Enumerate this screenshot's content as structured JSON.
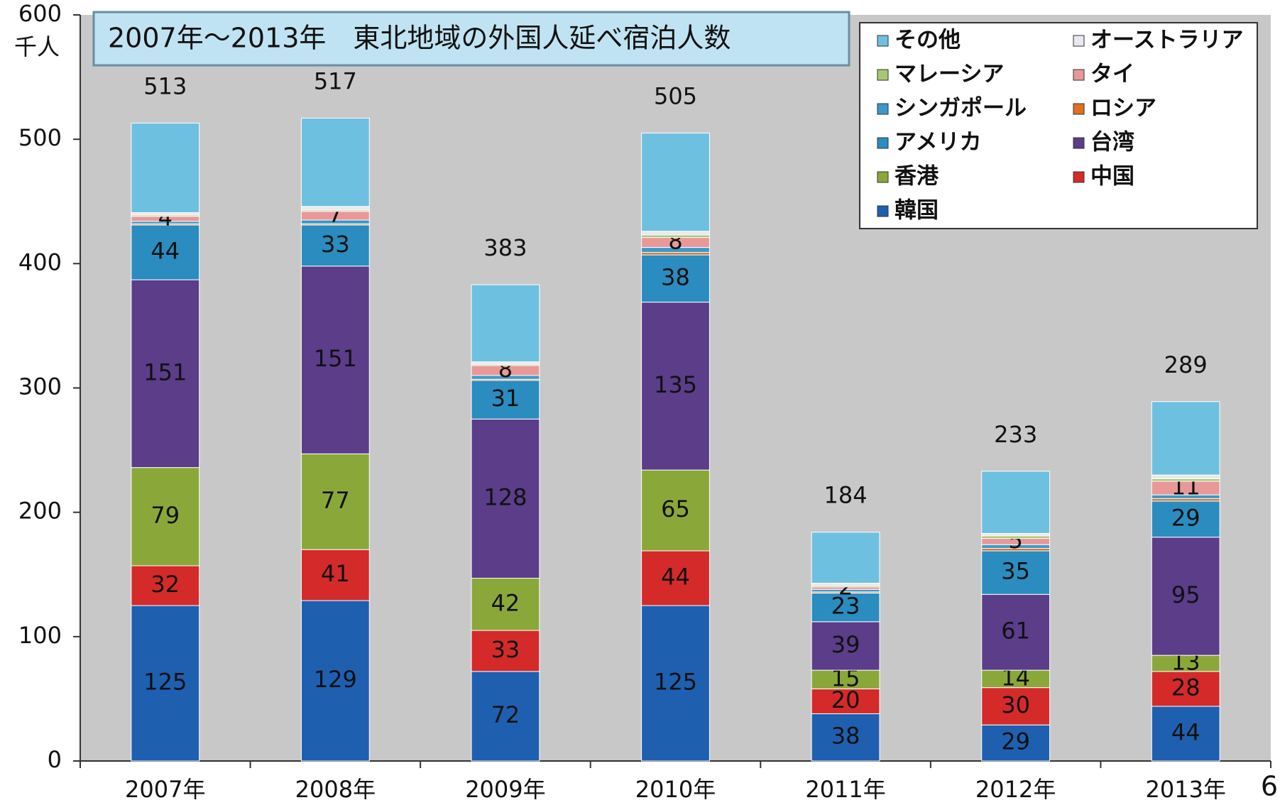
{
  "chart_data": {
    "type": "stacked_bar",
    "title": "2007年～2013年　東北地域の外国人延べ宿泊人数",
    "y_unit": "千人",
    "categories": [
      "2007年",
      "2008年",
      "2009年",
      "2010年",
      "2011年",
      "2012年",
      "2013年"
    ],
    "series": [
      {
        "name": "韓国",
        "color": "#1f5fb0",
        "show_labels": true,
        "values": [
          125,
          129,
          72,
          125,
          38,
          29,
          44
        ]
      },
      {
        "name": "中国",
        "color": "#d42a2a",
        "show_labels": true,
        "values": [
          32,
          41,
          33,
          44,
          20,
          30,
          28
        ]
      },
      {
        "name": "香港",
        "color": "#8aa83a",
        "show_labels": true,
        "values": [
          79,
          77,
          42,
          65,
          15,
          14,
          13
        ]
      },
      {
        "name": "台湾",
        "color": "#5b3d8a",
        "show_labels": true,
        "values": [
          151,
          151,
          128,
          135,
          39,
          61,
          95
        ]
      },
      {
        "name": "アメリカ",
        "color": "#2a8cbf",
        "show_labels": true,
        "values": [
          44,
          33,
          31,
          38,
          23,
          35,
          29
        ]
      },
      {
        "name": "ロシア",
        "color": "#e07020",
        "show_labels": false,
        "values": [
          1,
          1,
          1,
          2,
          1,
          2,
          2
        ]
      },
      {
        "name": "シンガポール",
        "color": "#3a9ac8",
        "show_labels": false,
        "values": [
          2,
          3,
          3,
          4,
          2,
          3,
          3
        ]
      },
      {
        "name": "タイ",
        "color": "#e89898",
        "show_labels": true,
        "values": [
          4,
          7,
          8,
          8,
          2,
          5,
          11
        ]
      },
      {
        "name": "マレーシア",
        "color": "#a8c870",
        "show_labels": false,
        "values": [
          1,
          1,
          1,
          2,
          1,
          2,
          2
        ]
      },
      {
        "name": "オーストラリア",
        "color": "#e8e8f0",
        "show_labels": false,
        "values": [
          2,
          3,
          2,
          3,
          2,
          2,
          3
        ]
      },
      {
        "name": "その他",
        "color": "#6ec0e0",
        "show_labels": false,
        "values": [
          72,
          71,
          62,
          79,
          41,
          50,
          59
        ]
      }
    ],
    "totals": [
      513,
      517,
      383,
      505,
      184,
      233,
      289
    ],
    "ylim": [
      0,
      600
    ],
    "yticks": [
      0,
      100,
      200,
      300,
      400,
      500,
      600
    ],
    "plot_background": "#c8c8c8"
  },
  "page_number": "6"
}
